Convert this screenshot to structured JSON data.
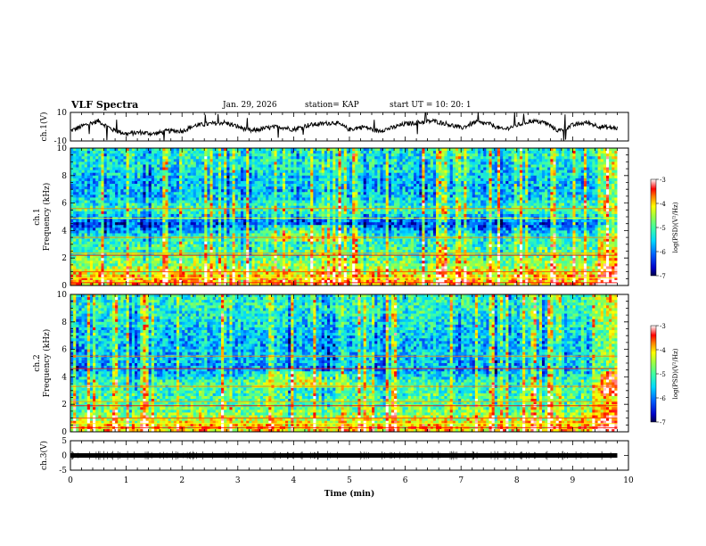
{
  "header": {
    "title": "VLF Spectra",
    "date": "Jan. 29, 2026",
    "station": "station= KAP",
    "start_ut": "start  UT  =   10: 20: 1"
  },
  "colors": {
    "ch1_trace": "#000000",
    "ch3_trace": "#000000",
    "colormap": [
      "#00007f",
      "#0000ff",
      "#0080ff",
      "#00ffff",
      "#80ff80",
      "#ffff00",
      "#ff8000",
      "#ff0000",
      "#ffffff"
    ]
  },
  "chart_data": [
    {
      "type": "line",
      "panel": "ch1",
      "ylabel": "ch.1(V)",
      "ylim": [
        -10,
        10
      ],
      "yticks": [
        "10",
        "-10"
      ],
      "xlim": [
        0,
        10
      ],
      "x_min_samples": [
        0,
        0.25,
        0.5,
        0.75,
        1.0,
        1.25,
        1.5,
        1.75,
        2.0,
        2.25,
        2.5,
        2.75,
        3.0,
        3.25,
        3.5,
        3.75,
        4.0,
        4.25,
        4.5,
        4.75,
        5.0,
        5.25,
        5.5,
        5.75,
        6.0,
        6.25,
        6.5,
        6.75,
        7.0,
        7.25,
        7.5,
        7.75,
        8.0,
        8.25,
        8.5,
        8.75,
        9.0,
        9.25,
        9.5,
        9.75
      ],
      "values": [
        -3,
        1,
        4,
        -2,
        -5,
        -4,
        -5,
        -3,
        -3,
        1,
        2,
        3,
        0,
        -3,
        -1,
        0,
        -2,
        1,
        2,
        3,
        -2,
        0,
        -3,
        -1,
        2,
        3,
        4,
        2,
        -1,
        3,
        2,
        -2,
        1,
        4,
        3,
        -3,
        1,
        3,
        0,
        -1
      ]
    },
    {
      "type": "heatmap",
      "panel": "ch1",
      "ylabel": "ch.1",
      "ylabel2": "Frequency (kHz)",
      "ylim": [
        0,
        10
      ],
      "yticks": [
        "0",
        "2",
        "4",
        "6",
        "8",
        "10"
      ],
      "xlim": [
        0,
        9.8
      ],
      "colorbar_label": "log(PSD)(V²/Hz)",
      "colorbar_range": [
        -7,
        -3
      ],
      "colorbar_ticks": [
        "-3",
        "-4",
        "-5",
        "-6",
        "-7"
      ],
      "freq_bands_khz": [
        0.5,
        1.5,
        2.5,
        3.5,
        4.5,
        5.5,
        6.5,
        7.5,
        8.5,
        9.5
      ],
      "band_levels": [
        -3.8,
        -4.6,
        -5.0,
        -5.2,
        -6.3,
        -5.0,
        -5.6,
        -5.7,
        -5.4,
        -5.3
      ]
    },
    {
      "type": "heatmap",
      "panel": "ch2",
      "ylabel": "ch.2",
      "ylabel2": "Frequency (kHz)",
      "ylim": [
        0,
        10
      ],
      "yticks": [
        "0",
        "2",
        "4",
        "6",
        "8",
        "10"
      ],
      "xlim": [
        0,
        9.8
      ],
      "colorbar_label": "log(PSD)(V²/Hz)",
      "colorbar_range": [
        -7,
        -3
      ],
      "colorbar_ticks": [
        "-3",
        "-4",
        "-5",
        "-6",
        "-7"
      ],
      "freq_bands_khz": [
        0.5,
        1.5,
        2.5,
        3.5,
        4.5,
        5.5,
        6.5,
        7.5,
        8.5,
        9.5
      ],
      "band_levels": [
        -4.0,
        -4.8,
        -5.0,
        -5.1,
        -5.8,
        -5.6,
        -5.7,
        -5.5,
        -5.3,
        -5.2
      ]
    },
    {
      "type": "line",
      "panel": "ch3",
      "ylabel": "ch.3(V)",
      "ylim": [
        -5,
        5
      ],
      "yticks": [
        "5",
        "0",
        "-5"
      ],
      "xlim": [
        0,
        9.8
      ],
      "level": 0,
      "xlabel": "Time  (min)",
      "xticks": [
        "0",
        "1",
        "2",
        "3",
        "4",
        "5",
        "6",
        "7",
        "8",
        "9",
        "10"
      ]
    }
  ]
}
